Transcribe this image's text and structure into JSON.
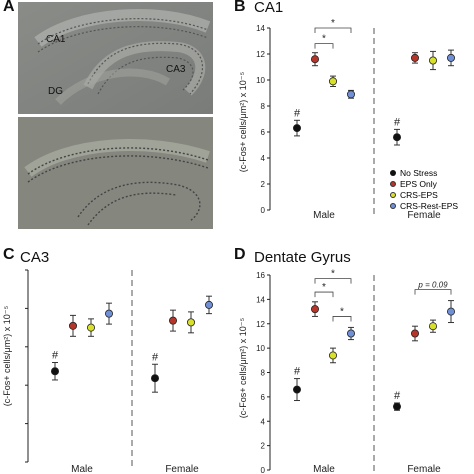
{
  "panel_A": {
    "letter": "A",
    "region_labels": {
      "ca1": "CA1",
      "ca3": "CA3",
      "dg": "DG"
    }
  },
  "legend": [
    {
      "name": "No Stress",
      "color": "#111111"
    },
    {
      "name": "EPS Only",
      "color": "#b5352a"
    },
    {
      "name": "CRS-EPS",
      "color": "#d8e02a"
    },
    {
      "name": "CRS-Rest-EPS",
      "color": "#6f8fd6"
    }
  ],
  "chart_data": [
    {
      "id": "B",
      "letter": "B",
      "type": "scatter",
      "title": "CA1",
      "ylabel": "(c-Fos+ cells/μm²) x 10⁻⁵",
      "ylim": [
        0,
        14
      ],
      "yticks": [
        0,
        2,
        4,
        6,
        8,
        10,
        12,
        14
      ],
      "groups": [
        "Male",
        "Female"
      ],
      "series": [
        {
          "name": "No Stress",
          "values": [
            6.3,
            5.6
          ],
          "err": [
            0.6,
            0.6
          ]
        },
        {
          "name": "EPS Only",
          "values": [
            11.6,
            11.7
          ],
          "err": [
            0.5,
            0.4
          ]
        },
        {
          "name": "CRS-EPS",
          "values": [
            9.9,
            11.5
          ],
          "err": [
            0.4,
            0.7
          ]
        },
        {
          "name": "CRS-Rest-EPS",
          "values": [
            8.9,
            11.7
          ],
          "err": [
            0.3,
            0.6
          ]
        }
      ],
      "group_marks": [
        [
          "#",
          ""
        ],
        [
          "#",
          ""
        ]
      ],
      "brackets": [
        {
          "group": 0,
          "from": 1,
          "to": 2,
          "y": 12.8,
          "text": "*"
        },
        {
          "group": 0,
          "from": 1,
          "to": 3,
          "y": 14.0,
          "text": "*"
        }
      ]
    },
    {
      "id": "C",
      "letter": "C",
      "type": "scatter",
      "title": "CA3",
      "ylabel": "(c-Fos+ cells/μm²) x 10⁻⁵",
      "ylim": [
        0,
        5.5
      ],
      "yticks": [],
      "groups": [
        "Male",
        "Female"
      ],
      "series": [
        {
          "name": "No Stress",
          "values": [
            2.6,
            2.4
          ],
          "err": [
            0.25,
            0.4
          ]
        },
        {
          "name": "EPS Only",
          "values": [
            3.9,
            4.05
          ],
          "err": [
            0.3,
            0.3
          ]
        },
        {
          "name": "CRS-EPS",
          "values": [
            3.85,
            4.0
          ],
          "err": [
            0.25,
            0.3
          ]
        },
        {
          "name": "CRS-Rest-EPS",
          "values": [
            4.25,
            4.5
          ],
          "err": [
            0.3,
            0.25
          ]
        }
      ],
      "group_marks": [
        [
          "#",
          ""
        ],
        [
          "#",
          ""
        ]
      ],
      "brackets": []
    },
    {
      "id": "D",
      "letter": "D",
      "type": "scatter",
      "title": "Dentate Gyrus",
      "ylabel": "(c-Fos+ cells/μm²) x 10⁻⁵",
      "ylim": [
        0,
        16
      ],
      "yticks": [
        0,
        2,
        4,
        6,
        8,
        10,
        12,
        14,
        16
      ],
      "groups": [
        "Male",
        "Female"
      ],
      "series": [
        {
          "name": "No Stress",
          "values": [
            6.6,
            5.2
          ],
          "err": [
            0.9,
            0.3
          ]
        },
        {
          "name": "EPS Only",
          "values": [
            13.2,
            11.2
          ],
          "err": [
            0.6,
            0.6
          ]
        },
        {
          "name": "CRS-EPS",
          "values": [
            9.4,
            11.8
          ],
          "err": [
            0.6,
            0.5
          ]
        },
        {
          "name": "CRS-Rest-EPS",
          "values": [
            11.2,
            13.0
          ],
          "err": [
            0.5,
            0.9
          ]
        }
      ],
      "group_marks": [
        [
          "#",
          ""
        ],
        [
          "#",
          ""
        ]
      ],
      "brackets": [
        {
          "group": 0,
          "from": 1,
          "to": 2,
          "y": 14.6,
          "text": "*"
        },
        {
          "group": 0,
          "from": 1,
          "to": 3,
          "y": 15.7,
          "text": "*"
        },
        {
          "group": 0,
          "from": 2,
          "to": 3,
          "y": 12.6,
          "text": "*"
        },
        {
          "group": 1,
          "from": 1,
          "to": 3,
          "y": 14.8,
          "text": "p = 0.09"
        }
      ]
    }
  ]
}
